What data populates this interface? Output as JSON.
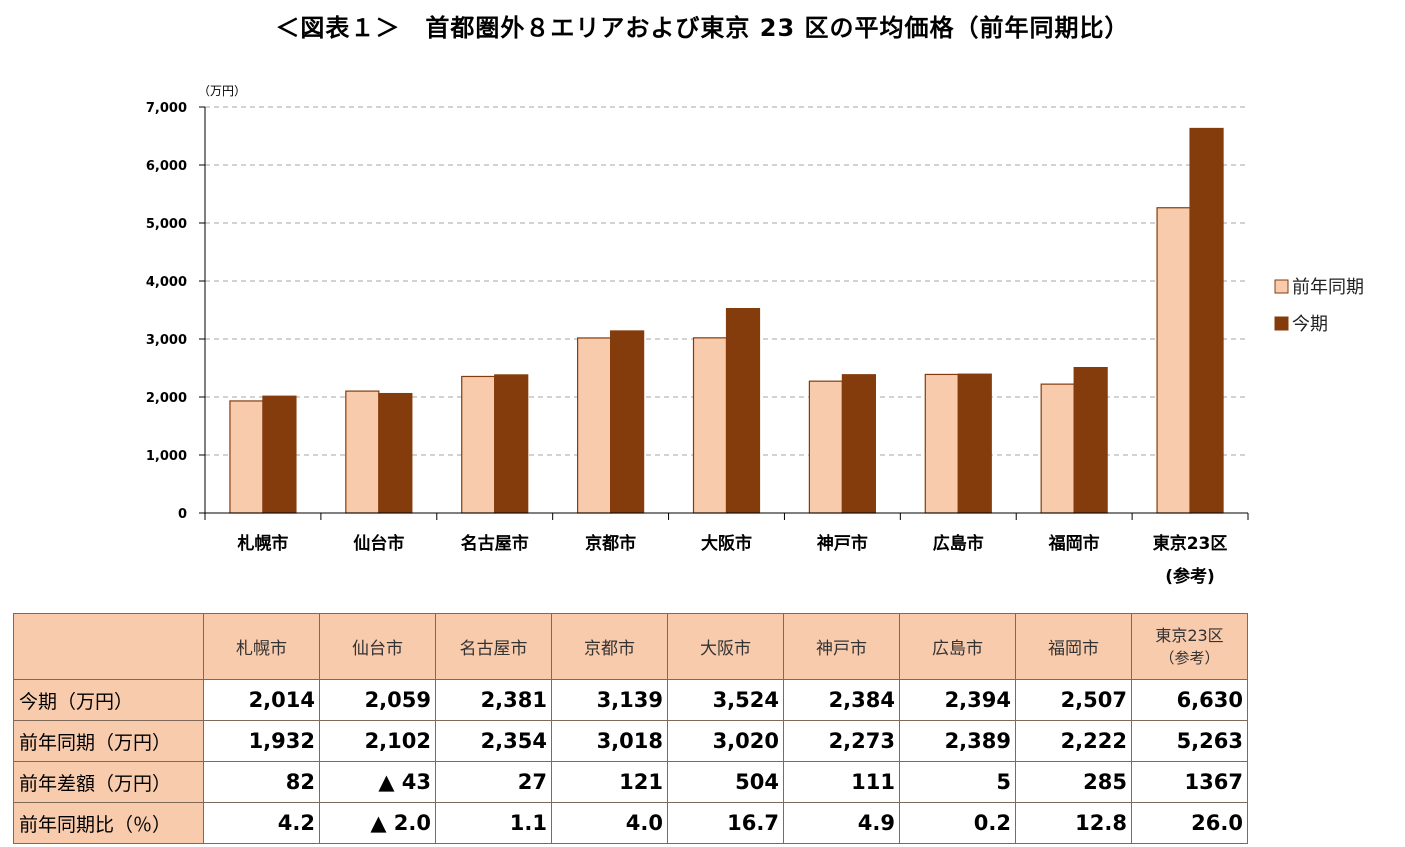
{
  "title": "＜図表１＞　首都圏外８エリアおよび東京 23 区の平均価格（前年同期比）",
  "chart_data": {
    "type": "bar",
    "unit_label": "（万円）",
    "categories": [
      {
        "line1": "札幌市",
        "line2": ""
      },
      {
        "line1": "仙台市",
        "line2": ""
      },
      {
        "line1": "名古屋市",
        "line2": ""
      },
      {
        "line1": "京都市",
        "line2": ""
      },
      {
        "line1": "大阪市",
        "line2": ""
      },
      {
        "line1": "神戸市",
        "line2": ""
      },
      {
        "line1": "広島市",
        "line2": ""
      },
      {
        "line1": "福岡市",
        "line2": ""
      },
      {
        "line1": "東京23区",
        "line2": "(参考)"
      }
    ],
    "series": [
      {
        "name": "前年同期",
        "color": "#f8cbad",
        "values": [
          1932,
          2102,
          2354,
          3018,
          3020,
          2273,
          2389,
          2222,
          5263
        ]
      },
      {
        "name": "今期",
        "color": "#843c0c",
        "values": [
          2014,
          2059,
          2381,
          3139,
          3524,
          2384,
          2394,
          2507,
          6630
        ]
      }
    ],
    "ylim": [
      0,
      7000
    ],
    "yticks": [
      "0",
      "1,000",
      "2,000",
      "3,000",
      "4,000",
      "5,000",
      "6,000",
      "7,000"
    ],
    "grid": true,
    "legend_position": "right"
  },
  "table": {
    "headers": [
      {
        "line1": "札幌市",
        "line2": ""
      },
      {
        "line1": "仙台市",
        "line2": ""
      },
      {
        "line1": "名古屋市",
        "line2": ""
      },
      {
        "line1": "京都市",
        "line2": ""
      },
      {
        "line1": "大阪市",
        "line2": ""
      },
      {
        "line1": "神戸市",
        "line2": ""
      },
      {
        "line1": "広島市",
        "line2": ""
      },
      {
        "line1": "福岡市",
        "line2": ""
      },
      {
        "line1": "東京23区",
        "line2": "（参考）"
      }
    ],
    "rows": [
      {
        "label": "今期（万円）",
        "cells": [
          "2,014",
          "2,059",
          "2,381",
          "3,139",
          "3,524",
          "2,384",
          "2,394",
          "2,507",
          "6,630"
        ]
      },
      {
        "label": "前年同期（万円）",
        "cells": [
          "1,932",
          "2,102",
          "2,354",
          "3,018",
          "3,020",
          "2,273",
          "2,389",
          "2,222",
          "5,263"
        ]
      },
      {
        "label": "前年差額（万円）",
        "cells": [
          "82",
          "▲ 43",
          "27",
          "121",
          "504",
          "111",
          "5",
          "285",
          "1367"
        ]
      },
      {
        "label": "前年同期比（％）",
        "cells": [
          "4.2",
          "▲ 2.0",
          "1.1",
          "4.0",
          "16.7",
          "4.9",
          "0.2",
          "12.8",
          "26.0"
        ]
      }
    ]
  }
}
